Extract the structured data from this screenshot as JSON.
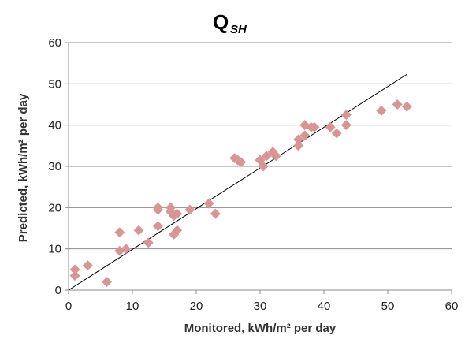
{
  "chart_data": {
    "type": "scatter",
    "title": "Q",
    "title_subscript": "SH",
    "xlabel": "Monitored, kWh/m² per day",
    "ylabel": "Predicted, kWh/m² per day",
    "xlim": [
      0,
      60
    ],
    "ylim": [
      0,
      60
    ],
    "xticks": [
      0,
      10,
      20,
      30,
      40,
      50,
      60
    ],
    "yticks": [
      0,
      10,
      20,
      30,
      40,
      50,
      60
    ],
    "grid": "horizontal",
    "legend": "none",
    "marker": "diamond",
    "marker_color": "#d99594",
    "trend_line": {
      "x": [
        0,
        53
      ],
      "y": [
        0,
        52.3
      ]
    },
    "points": [
      [
        1,
        5
      ],
      [
        1,
        3.5
      ],
      [
        3,
        6
      ],
      [
        6,
        2
      ],
      [
        8,
        14
      ],
      [
        8,
        9.5
      ],
      [
        9,
        10
      ],
      [
        11,
        14.5
      ],
      [
        12.5,
        11.5
      ],
      [
        14,
        20
      ],
      [
        14,
        19.5
      ],
      [
        14,
        15.5
      ],
      [
        16,
        20
      ],
      [
        16,
        19
      ],
      [
        16.5,
        18
      ],
      [
        16.5,
        13.5
      ],
      [
        17,
        18.5
      ],
      [
        17,
        14.5
      ],
      [
        19,
        19.5
      ],
      [
        22,
        21
      ],
      [
        23,
        18.5
      ],
      [
        26,
        32
      ],
      [
        26.5,
        31.5
      ],
      [
        27,
        31
      ],
      [
        30,
        31.5
      ],
      [
        30.5,
        30
      ],
      [
        31,
        32.5
      ],
      [
        32,
        33.5
      ],
      [
        32.5,
        32.5
      ],
      [
        36,
        36.5
      ],
      [
        36,
        35
      ],
      [
        37,
        40
      ],
      [
        37,
        37.5
      ],
      [
        38,
        39.5
      ],
      [
        38.5,
        39.5
      ],
      [
        41,
        39.5
      ],
      [
        42,
        38
      ],
      [
        43.5,
        42.5
      ],
      [
        43.5,
        40
      ],
      [
        49,
        43.5
      ],
      [
        51.5,
        45
      ],
      [
        53,
        44.5
      ]
    ]
  }
}
